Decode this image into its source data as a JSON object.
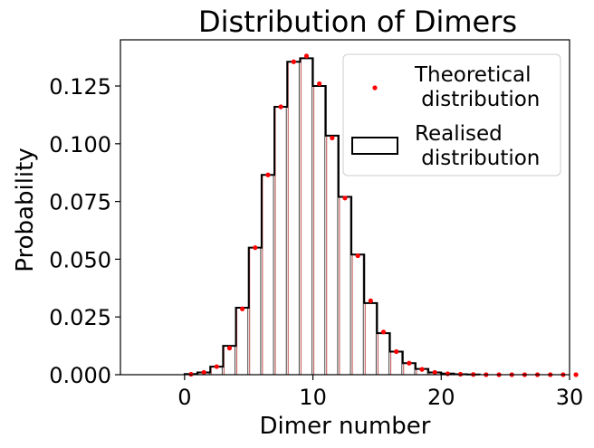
{
  "chart_data": {
    "type": "bar",
    "title": "Distribution of Dimers",
    "xlabel": "Dimer number",
    "ylabel": "Probability",
    "xlim": [
      -5,
      30
    ],
    "ylim": [
      0,
      0.145
    ],
    "x_ticks": [
      0,
      10,
      20,
      30
    ],
    "y_ticks": [
      0.0,
      0.025,
      0.05,
      0.075,
      0.1,
      0.125
    ],
    "y_tick_labels": [
      "0.000",
      "0.025",
      "0.050",
      "0.075",
      "0.100",
      "0.125"
    ],
    "legend_position": "top-right",
    "series": [
      {
        "name": "Theoretical\n distribution",
        "kind": "scatter",
        "color": "#ff0000",
        "x": [
          0,
          1,
          2,
          3,
          4,
          5,
          6,
          7,
          8,
          9,
          10,
          11,
          12,
          13,
          14,
          15,
          16,
          17,
          18,
          19,
          20,
          21,
          22,
          23,
          24,
          25,
          26,
          27,
          28,
          29,
          30
        ],
        "y": [
          0.0002,
          0.001,
          0.0035,
          0.0115,
          0.0285,
          0.055,
          0.0865,
          0.116,
          0.1355,
          0.138,
          0.126,
          0.1025,
          0.0765,
          0.0515,
          0.032,
          0.0185,
          0.01,
          0.005,
          0.0023,
          0.001,
          0.0004,
          0.0002,
          0.0001,
          0.0,
          0.0,
          0.0,
          0.0,
          0.0,
          0.0,
          0.0,
          0.0
        ]
      },
      {
        "name": "Realised\n distribution",
        "kind": "histogram-step",
        "color": "#000000",
        "bin_edges": [
          0,
          1,
          2,
          3,
          4,
          5,
          6,
          7,
          8,
          9,
          10,
          11,
          12,
          13,
          14,
          15,
          16,
          17,
          18,
          19,
          20,
          21,
          22,
          23
        ],
        "values": [
          0.0003,
          0.001,
          0.0035,
          0.0125,
          0.029,
          0.055,
          0.0865,
          0.116,
          0.1355,
          0.137,
          0.125,
          0.1035,
          0.077,
          0.052,
          0.031,
          0.018,
          0.01,
          0.005,
          0.0025,
          0.001,
          0.0005,
          0.0002,
          0.0001
        ]
      }
    ],
    "colors": {
      "bar_edge_light": "#c0504d",
      "bar_edge_dark": "#444444",
      "point": "#ff0000",
      "outline": "#000000"
    }
  }
}
